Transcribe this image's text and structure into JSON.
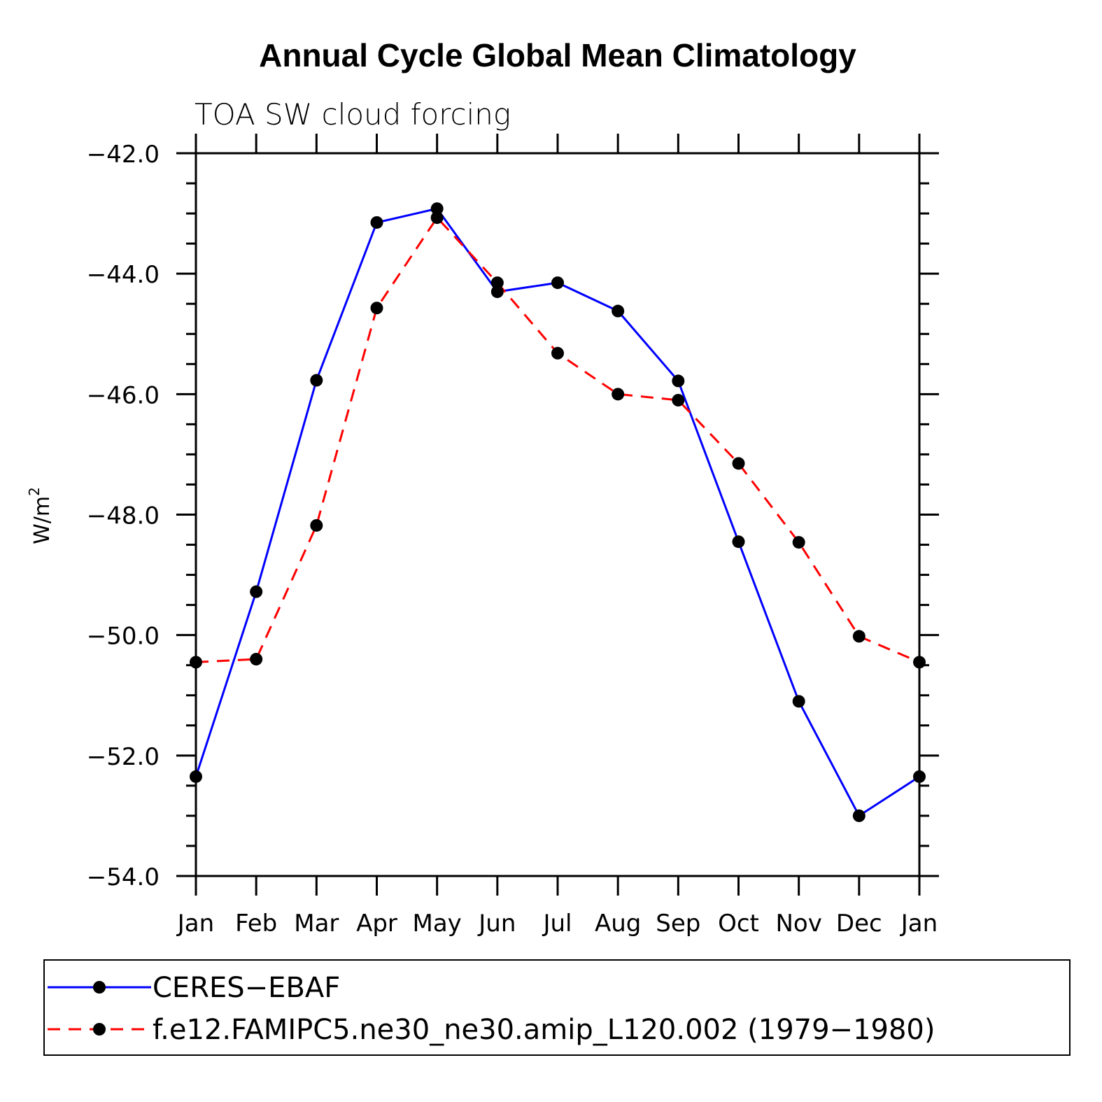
{
  "chart_data": {
    "type": "line",
    "title": "Annual Cycle Global Mean Climatology",
    "subtitle": "TOA SW cloud forcing",
    "ylabel": "W/m",
    "ylabel_superscript": "2",
    "xlabel": "",
    "categories": [
      "Jan",
      "Feb",
      "Mar",
      "Apr",
      "May",
      "Jun",
      "Jul",
      "Aug",
      "Sep",
      "Oct",
      "Nov",
      "Dec",
      "Jan"
    ],
    "ylim": [
      -54.0,
      -42.0
    ],
    "yticks": [
      -42.0,
      -44.0,
      -46.0,
      -48.0,
      -50.0,
      -52.0,
      -54.0
    ],
    "ytick_labels": [
      "−42.0",
      "−44.0",
      "−46.0",
      "−48.0",
      "−50.0",
      "−52.0",
      "−54.0"
    ],
    "grid": false,
    "legend_position": "bottom",
    "series": [
      {
        "name": "CERES−EBAF",
        "color": "#0000ff",
        "dash": "solid",
        "marker": "circle",
        "values": [
          -52.35,
          -49.28,
          -45.77,
          -43.15,
          -42.92,
          -44.3,
          -44.15,
          -44.62,
          -45.78,
          -48.45,
          -51.1,
          -53.0,
          -52.35
        ]
      },
      {
        "name": "f.e12.FAMIPC5.ne30_ne30.amip_L120.002 (1979−1980)",
        "color": "#ff0000",
        "dash": "dashed",
        "marker": "circle",
        "values": [
          -50.45,
          -50.4,
          -48.18,
          -44.57,
          -43.07,
          -44.15,
          -45.32,
          -46.0,
          -46.1,
          -47.15,
          -48.46,
          -50.02,
          -50.45
        ]
      }
    ]
  }
}
